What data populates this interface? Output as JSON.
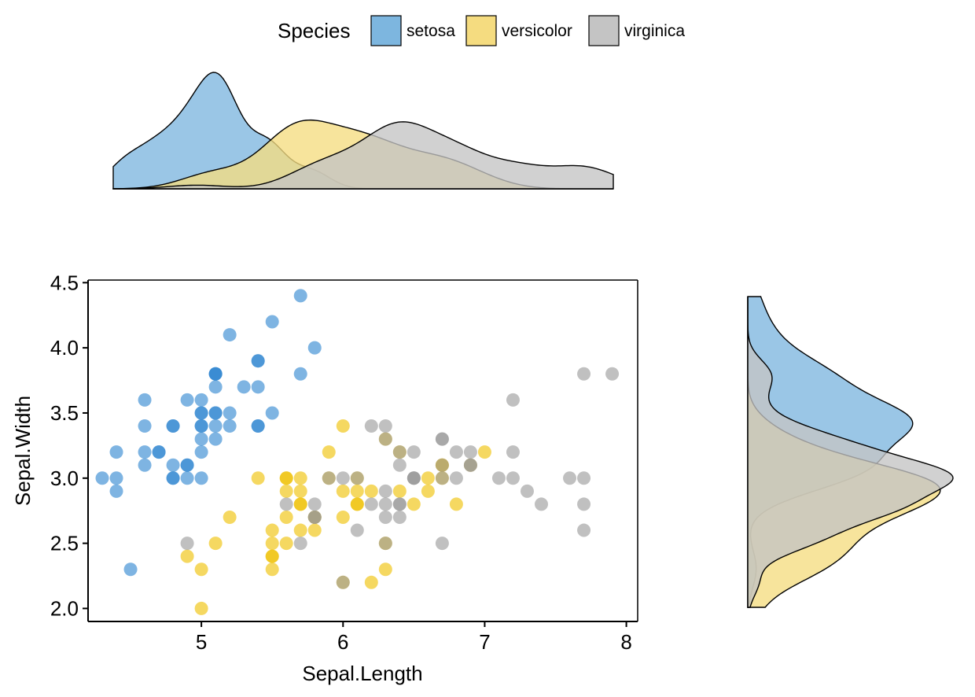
{
  "legend": {
    "title": "Species",
    "position": "top"
  },
  "colors": {
    "setosa": "#2E86D1",
    "versicolor": "#EFC000",
    "virginica": "#999999",
    "density_setosa": "#7DB6DF",
    "density_versicolor": "#F5DC80",
    "density_virginica": "#C4C4C4"
  },
  "chart_data": {
    "type": "scatter",
    "title": "",
    "xlabel": "Sepal.Length",
    "ylabel": "Sepal.Width",
    "xlim": [
      4.2,
      8.08
    ],
    "ylim": [
      1.9,
      4.52
    ],
    "xticks": [
      5,
      6,
      7,
      8
    ],
    "xtick_labels": [
      "5",
      "6",
      "7",
      "8"
    ],
    "yticks": [
      2.0,
      2.5,
      3.0,
      3.5,
      4.0,
      4.5
    ],
    "ytick_labels": [
      "2.0",
      "2.5",
      "3.0",
      "3.5",
      "4.0",
      "4.5"
    ],
    "grid": false,
    "marginal": "density",
    "series": [
      {
        "name": "setosa",
        "points": [
          [
            5.1,
            3.5
          ],
          [
            4.9,
            3.0
          ],
          [
            4.7,
            3.2
          ],
          [
            4.6,
            3.1
          ],
          [
            5.0,
            3.6
          ],
          [
            5.4,
            3.9
          ],
          [
            4.6,
            3.4
          ],
          [
            5.0,
            3.4
          ],
          [
            4.4,
            2.9
          ],
          [
            4.9,
            3.1
          ],
          [
            5.4,
            3.7
          ],
          [
            4.8,
            3.4
          ],
          [
            4.8,
            3.0
          ],
          [
            4.3,
            3.0
          ],
          [
            5.8,
            4.0
          ],
          [
            5.7,
            4.4
          ],
          [
            5.4,
            3.9
          ],
          [
            5.1,
            3.5
          ],
          [
            5.7,
            3.8
          ],
          [
            5.1,
            3.8
          ],
          [
            5.4,
            3.4
          ],
          [
            5.1,
            3.7
          ],
          [
            4.6,
            3.6
          ],
          [
            5.1,
            3.3
          ],
          [
            4.8,
            3.4
          ],
          [
            5.0,
            3.0
          ],
          [
            5.0,
            3.4
          ],
          [
            5.2,
            3.5
          ],
          [
            5.2,
            3.4
          ],
          [
            4.7,
            3.2
          ],
          [
            4.8,
            3.1
          ],
          [
            5.4,
            3.4
          ],
          [
            5.2,
            4.1
          ],
          [
            5.5,
            4.2
          ],
          [
            4.9,
            3.1
          ],
          [
            5.0,
            3.2
          ],
          [
            5.5,
            3.5
          ],
          [
            4.9,
            3.6
          ],
          [
            4.4,
            3.0
          ],
          [
            5.1,
            3.4
          ],
          [
            5.0,
            3.5
          ],
          [
            4.5,
            2.3
          ],
          [
            4.4,
            3.2
          ],
          [
            5.0,
            3.5
          ],
          [
            5.1,
            3.8
          ],
          [
            4.8,
            3.0
          ],
          [
            5.1,
            3.8
          ],
          [
            4.6,
            3.2
          ],
          [
            5.3,
            3.7
          ],
          [
            5.0,
            3.3
          ]
        ]
      },
      {
        "name": "versicolor",
        "points": [
          [
            7.0,
            3.2
          ],
          [
            6.4,
            3.2
          ],
          [
            6.9,
            3.1
          ],
          [
            5.5,
            2.3
          ],
          [
            6.5,
            2.8
          ],
          [
            5.7,
            2.8
          ],
          [
            6.3,
            3.3
          ],
          [
            4.9,
            2.4
          ],
          [
            6.6,
            2.9
          ],
          [
            5.2,
            2.7
          ],
          [
            5.0,
            2.0
          ],
          [
            5.9,
            3.0
          ],
          [
            6.0,
            2.2
          ],
          [
            6.1,
            2.9
          ],
          [
            5.6,
            2.9
          ],
          [
            6.7,
            3.1
          ],
          [
            5.6,
            3.0
          ],
          [
            5.8,
            2.7
          ],
          [
            6.2,
            2.2
          ],
          [
            5.6,
            2.5
          ],
          [
            5.9,
            3.2
          ],
          [
            6.1,
            2.8
          ],
          [
            6.3,
            2.5
          ],
          [
            6.1,
            2.8
          ],
          [
            6.4,
            2.9
          ],
          [
            6.6,
            3.0
          ],
          [
            6.8,
            2.8
          ],
          [
            6.7,
            3.0
          ],
          [
            6.0,
            2.9
          ],
          [
            5.7,
            2.6
          ],
          [
            5.5,
            2.4
          ],
          [
            5.5,
            2.4
          ],
          [
            5.8,
            2.7
          ],
          [
            6.0,
            2.7
          ],
          [
            5.4,
            3.0
          ],
          [
            6.0,
            3.4
          ],
          [
            6.7,
            3.1
          ],
          [
            6.3,
            2.3
          ],
          [
            5.6,
            3.0
          ],
          [
            5.5,
            2.5
          ],
          [
            5.5,
            2.6
          ],
          [
            6.1,
            3.0
          ],
          [
            5.8,
            2.6
          ],
          [
            5.0,
            2.3
          ],
          [
            5.6,
            2.7
          ],
          [
            5.7,
            3.0
          ],
          [
            5.7,
            2.9
          ],
          [
            6.2,
            2.9
          ],
          [
            5.1,
            2.5
          ],
          [
            5.7,
            2.8
          ]
        ]
      },
      {
        "name": "virginica",
        "points": [
          [
            6.3,
            3.3
          ],
          [
            5.8,
            2.7
          ],
          [
            7.1,
            3.0
          ],
          [
            6.3,
            2.9
          ],
          [
            6.5,
            3.0
          ],
          [
            7.6,
            3.0
          ],
          [
            4.9,
            2.5
          ],
          [
            7.3,
            2.9
          ],
          [
            6.7,
            2.5
          ],
          [
            7.2,
            3.6
          ],
          [
            6.5,
            3.2
          ],
          [
            6.4,
            2.7
          ],
          [
            6.8,
            3.0
          ],
          [
            5.7,
            2.5
          ],
          [
            5.8,
            2.8
          ],
          [
            6.4,
            3.2
          ],
          [
            6.5,
            3.0
          ],
          [
            7.7,
            3.8
          ],
          [
            7.7,
            2.6
          ],
          [
            6.0,
            2.2
          ],
          [
            6.9,
            3.2
          ],
          [
            5.6,
            2.8
          ],
          [
            7.7,
            2.8
          ],
          [
            6.3,
            2.7
          ],
          [
            6.7,
            3.3
          ],
          [
            7.2,
            3.2
          ],
          [
            6.2,
            2.8
          ],
          [
            6.1,
            3.0
          ],
          [
            6.4,
            2.8
          ],
          [
            7.2,
            3.0
          ],
          [
            7.4,
            2.8
          ],
          [
            7.9,
            3.8
          ],
          [
            6.4,
            2.8
          ],
          [
            6.3,
            2.8
          ],
          [
            6.1,
            2.6
          ],
          [
            7.7,
            3.0
          ],
          [
            6.3,
            3.4
          ],
          [
            6.4,
            3.1
          ],
          [
            6.0,
            3.0
          ],
          [
            6.9,
            3.1
          ],
          [
            6.7,
            3.1
          ],
          [
            6.9,
            3.1
          ],
          [
            5.8,
            2.7
          ],
          [
            6.8,
            3.2
          ],
          [
            6.7,
            3.3
          ],
          [
            6.7,
            3.0
          ],
          [
            6.3,
            2.5
          ],
          [
            6.5,
            3.0
          ],
          [
            6.2,
            3.4
          ],
          [
            5.9,
            3.0
          ]
        ]
      }
    ]
  }
}
